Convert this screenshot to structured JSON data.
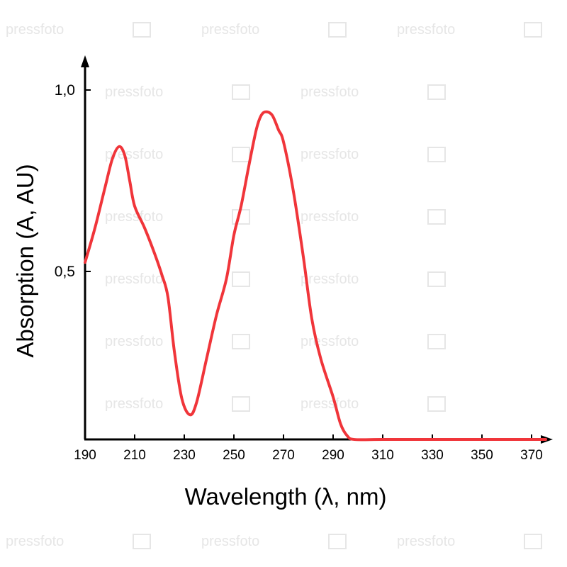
{
  "watermark": "pressfoto",
  "chart_data": {
    "type": "line",
    "title": "",
    "xlabel": "Wavelength (λ, nm)",
    "ylabel": "Absorption (A, AU)",
    "xlim": [
      190,
      378
    ],
    "ylim": [
      0.037,
      1.09
    ],
    "x_ticks": [
      190,
      210,
      230,
      250,
      270,
      290,
      310,
      330,
      350,
      370
    ],
    "x_tick_labels": [
      "190",
      "210",
      "230",
      "250",
      "270",
      "290",
      "310",
      "330",
      "350",
      "370"
    ],
    "y_ticks": [
      0.5,
      1.0
    ],
    "y_tick_labels": [
      "0,5",
      "1,0"
    ],
    "grid": false,
    "line_color": "#f0353a",
    "series": [
      {
        "name": "absorption",
        "x": [
          190,
          194,
          198,
          201,
          203.7,
          206,
          208,
          210,
          214,
          218,
          221,
          223.4,
          226,
          229,
          232.3,
          235,
          239,
          243,
          247,
          250,
          252.9,
          256,
          259,
          261,
          263,
          265.5,
          268,
          270,
          274,
          278,
          281.4,
          285,
          290,
          293,
          295.7,
          298.6,
          310,
          330,
          350,
          375.7
        ],
        "y": [
          0.525,
          0.62,
          0.73,
          0.81,
          0.844,
          0.82,
          0.75,
          0.68,
          0.62,
          0.55,
          0.49,
          0.43,
          0.28,
          0.15,
          0.105,
          0.14,
          0.26,
          0.38,
          0.48,
          0.6,
          0.68,
          0.79,
          0.89,
          0.93,
          0.94,
          0.93,
          0.89,
          0.857,
          0.72,
          0.54,
          0.37,
          0.26,
          0.154,
          0.08,
          0.047,
          0.037,
          0.037,
          0.037,
          0.037,
          0.037
        ]
      }
    ]
  }
}
